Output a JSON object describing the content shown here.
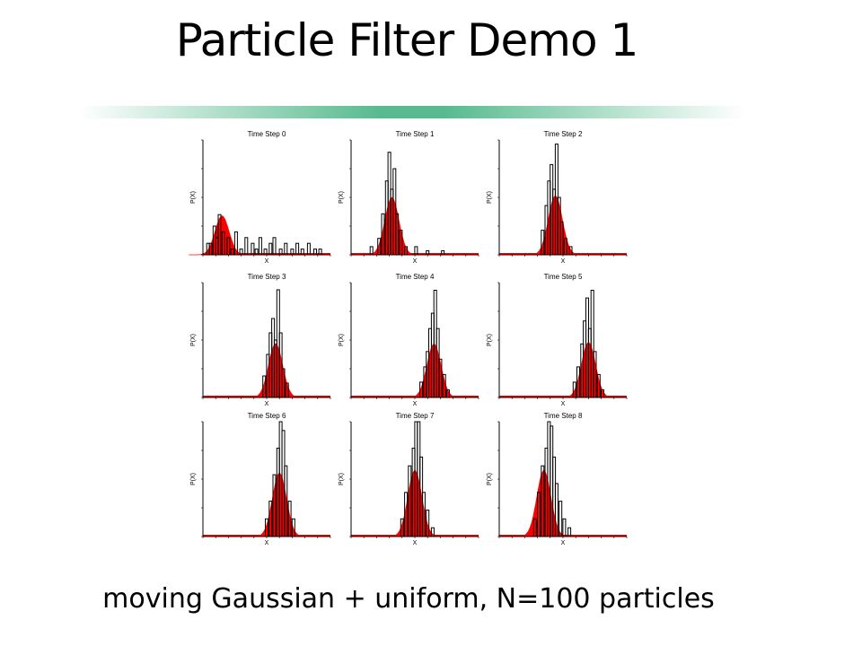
{
  "slide": {
    "title": "Particle Filter Demo 1",
    "caption": "moving Gaussian + uniform, N=100 particles"
  },
  "colors": {
    "density_fill": "#ff0000",
    "particles": "#000000",
    "title_rule": "#45b383"
  },
  "chart_data": [
    {
      "type": "histogram",
      "title": "Time Step 0",
      "xlabel": "X",
      "ylabel": "P(X)",
      "density_mean": 1.5,
      "density_peak": 0.68,
      "ylim": [
        0,
        2.0
      ],
      "particle_bars": [
        [
          0.4,
          0.2
        ],
        [
          0.6,
          0.2
        ],
        [
          0.9,
          0.5
        ],
        [
          1.1,
          0.3
        ],
        [
          1.3,
          0.7
        ],
        [
          1.6,
          0.4
        ],
        [
          2.0,
          0.3
        ],
        [
          2.3,
          0.1
        ],
        [
          2.6,
          0.4
        ],
        [
          3.0,
          0.1
        ],
        [
          3.4,
          0.3
        ],
        [
          3.9,
          0.2
        ],
        [
          4.2,
          0.1
        ],
        [
          4.5,
          0.3
        ],
        [
          4.9,
          0.1
        ],
        [
          5.3,
          0.2
        ],
        [
          5.6,
          0.3
        ],
        [
          6.1,
          0.1
        ],
        [
          6.5,
          0.2
        ],
        [
          7.0,
          0.1
        ],
        [
          7.4,
          0.2
        ],
        [
          7.8,
          0.1
        ],
        [
          8.3,
          0.2
        ],
        [
          8.8,
          0.1
        ],
        [
          9.2,
          0.1
        ]
      ]
    },
    {
      "type": "histogram",
      "title": "Time Step 1",
      "xlabel": "X",
      "ylabel": "P(X)",
      "density_mean": 3.2,
      "density_peak": 0.7,
      "ylim": [
        0,
        1.4
      ],
      "particle_bars": [
        [
          1.6,
          0.1
        ],
        [
          2.2,
          0.2
        ],
        [
          2.5,
          0.5
        ],
        [
          2.8,
          0.9
        ],
        [
          3.0,
          1.25
        ],
        [
          3.2,
          0.8
        ],
        [
          3.4,
          1.05
        ],
        [
          3.6,
          0.5
        ],
        [
          3.9,
          0.3
        ],
        [
          4.3,
          0.1
        ],
        [
          5.1,
          0.1
        ],
        [
          6.0,
          0.05
        ],
        [
          7.2,
          0.05
        ]
      ]
    },
    {
      "type": "histogram",
      "title": "Time Step 2",
      "xlabel": "X",
      "ylabel": "P(X)",
      "density_mean": 4.4,
      "density_peak": 0.72,
      "ylim": [
        0,
        1.4
      ],
      "particle_bars": [
        [
          3.4,
          0.3
        ],
        [
          3.7,
          0.6
        ],
        [
          3.9,
          0.9
        ],
        [
          4.1,
          1.1
        ],
        [
          4.3,
          0.8
        ],
        [
          4.5,
          1.35
        ],
        [
          4.7,
          0.7
        ],
        [
          4.9,
          0.4
        ],
        [
          5.2,
          0.2
        ],
        [
          5.6,
          0.1
        ]
      ]
    },
    {
      "type": "histogram",
      "title": "Time Step 3",
      "xlabel": "X",
      "ylabel": "P(X)",
      "density_mean": 5.7,
      "density_peak": 0.75,
      "ylim": [
        0,
        1.6
      ],
      "particle_bars": [
        [
          4.8,
          0.3
        ],
        [
          5.1,
          0.6
        ],
        [
          5.3,
          0.9
        ],
        [
          5.5,
          1.1
        ],
        [
          5.7,
          0.8
        ],
        [
          5.9,
          1.5
        ],
        [
          6.1,
          0.9
        ],
        [
          6.3,
          0.4
        ],
        [
          6.6,
          0.2
        ]
      ]
    },
    {
      "type": "histogram",
      "title": "Time Step 4",
      "xlabel": "X",
      "ylabel": "P(X)",
      "density_mean": 6.5,
      "density_peak": 0.7,
      "ylim": [
        0,
        1.5
      ],
      "particle_bars": [
        [
          5.5,
          0.2
        ],
        [
          5.8,
          0.4
        ],
        [
          6.0,
          0.6
        ],
        [
          6.2,
          0.9
        ],
        [
          6.4,
          1.1
        ],
        [
          6.6,
          1.4
        ],
        [
          6.8,
          0.9
        ],
        [
          7.0,
          0.5
        ],
        [
          7.3,
          0.3
        ],
        [
          7.6,
          0.1
        ]
      ]
    },
    {
      "type": "histogram",
      "title": "Time Step 5",
      "xlabel": "X",
      "ylabel": "P(X)",
      "density_mean": 7.0,
      "density_peak": 0.72,
      "ylim": [
        0,
        1.5
      ],
      "particle_bars": [
        [
          5.9,
          0.2
        ],
        [
          6.2,
          0.4
        ],
        [
          6.5,
          0.7
        ],
        [
          6.7,
          1.0
        ],
        [
          6.9,
          1.3
        ],
        [
          7.1,
          0.9
        ],
        [
          7.3,
          1.4
        ],
        [
          7.5,
          0.6
        ],
        [
          7.8,
          0.3
        ],
        [
          8.1,
          0.1
        ]
      ]
    },
    {
      "type": "histogram",
      "title": "Time Step 6",
      "xlabel": "X",
      "ylabel": "P(X)",
      "density_mean": 6.0,
      "density_peak": 0.72,
      "ylim": [
        0,
        1.3
      ],
      "particle_bars": [
        [
          5.0,
          0.2
        ],
        [
          5.3,
          0.4
        ],
        [
          5.6,
          0.7
        ],
        [
          5.9,
          1.0
        ],
        [
          6.1,
          1.3
        ],
        [
          6.3,
          1.2
        ],
        [
          6.5,
          0.8
        ],
        [
          6.8,
          0.4
        ],
        [
          7.1,
          0.2
        ]
      ]
    },
    {
      "type": "histogram",
      "title": "Time Step 7",
      "xlabel": "X",
      "ylabel": "P(X)",
      "density_mean": 5.0,
      "density_peak": 0.75,
      "ylim": [
        0,
        1.3
      ],
      "particle_bars": [
        [
          4.0,
          0.2
        ],
        [
          4.3,
          0.5
        ],
        [
          4.6,
          0.8
        ],
        [
          4.9,
          1.0
        ],
        [
          5.1,
          1.3
        ],
        [
          5.3,
          1.3
        ],
        [
          5.5,
          0.9
        ],
        [
          5.7,
          0.5
        ],
        [
          6.0,
          0.3
        ],
        [
          6.4,
          0.1
        ]
      ]
    },
    {
      "type": "histogram",
      "title": "Time Step 8",
      "xlabel": "X",
      "ylabel": "P(X)",
      "density_mean": 3.5,
      "density_peak": 0.75,
      "ylim": [
        0,
        1.3
      ],
      "particle_bars": [
        [
          2.8,
          0.2
        ],
        [
          3.1,
          0.5
        ],
        [
          3.4,
          0.8
        ],
        [
          3.7,
          1.0
        ],
        [
          3.9,
          1.3
        ],
        [
          4.1,
          1.25
        ],
        [
          4.3,
          0.9
        ],
        [
          4.5,
          0.6
        ],
        [
          4.8,
          0.4
        ],
        [
          5.1,
          0.2
        ],
        [
          5.5,
          0.1
        ]
      ]
    }
  ]
}
